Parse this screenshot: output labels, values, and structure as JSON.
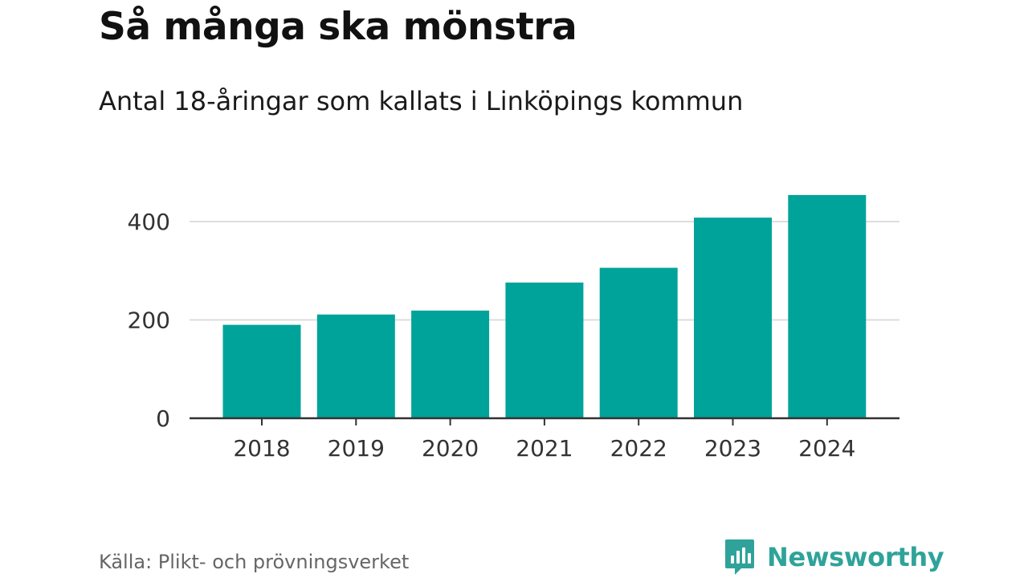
{
  "chart_data": {
    "type": "bar",
    "title": "Så många ska mönstra",
    "subtitle": "Antal 18-åringar som kallats i Linköpings kommun",
    "categories": [
      "2018",
      "2019",
      "2020",
      "2021",
      "2022",
      "2023",
      "2024"
    ],
    "values": [
      190,
      211,
      219,
      276,
      306,
      408,
      454
    ],
    "ylim": [
      0,
      480
    ],
    "yticks": [
      0,
      200,
      400
    ],
    "xlabel": "",
    "ylabel": "",
    "grid": "horizontal",
    "bar_color": "#00a39a",
    "gridline_color": "#dddddd",
    "axis_color": "#333333"
  },
  "footer": {
    "source": "Källa: Plikt- och prövningsverket",
    "brand": "Newsworthy",
    "brand_icon": "newsworthy-logo-icon",
    "brand_color": "#2fa39a"
  }
}
